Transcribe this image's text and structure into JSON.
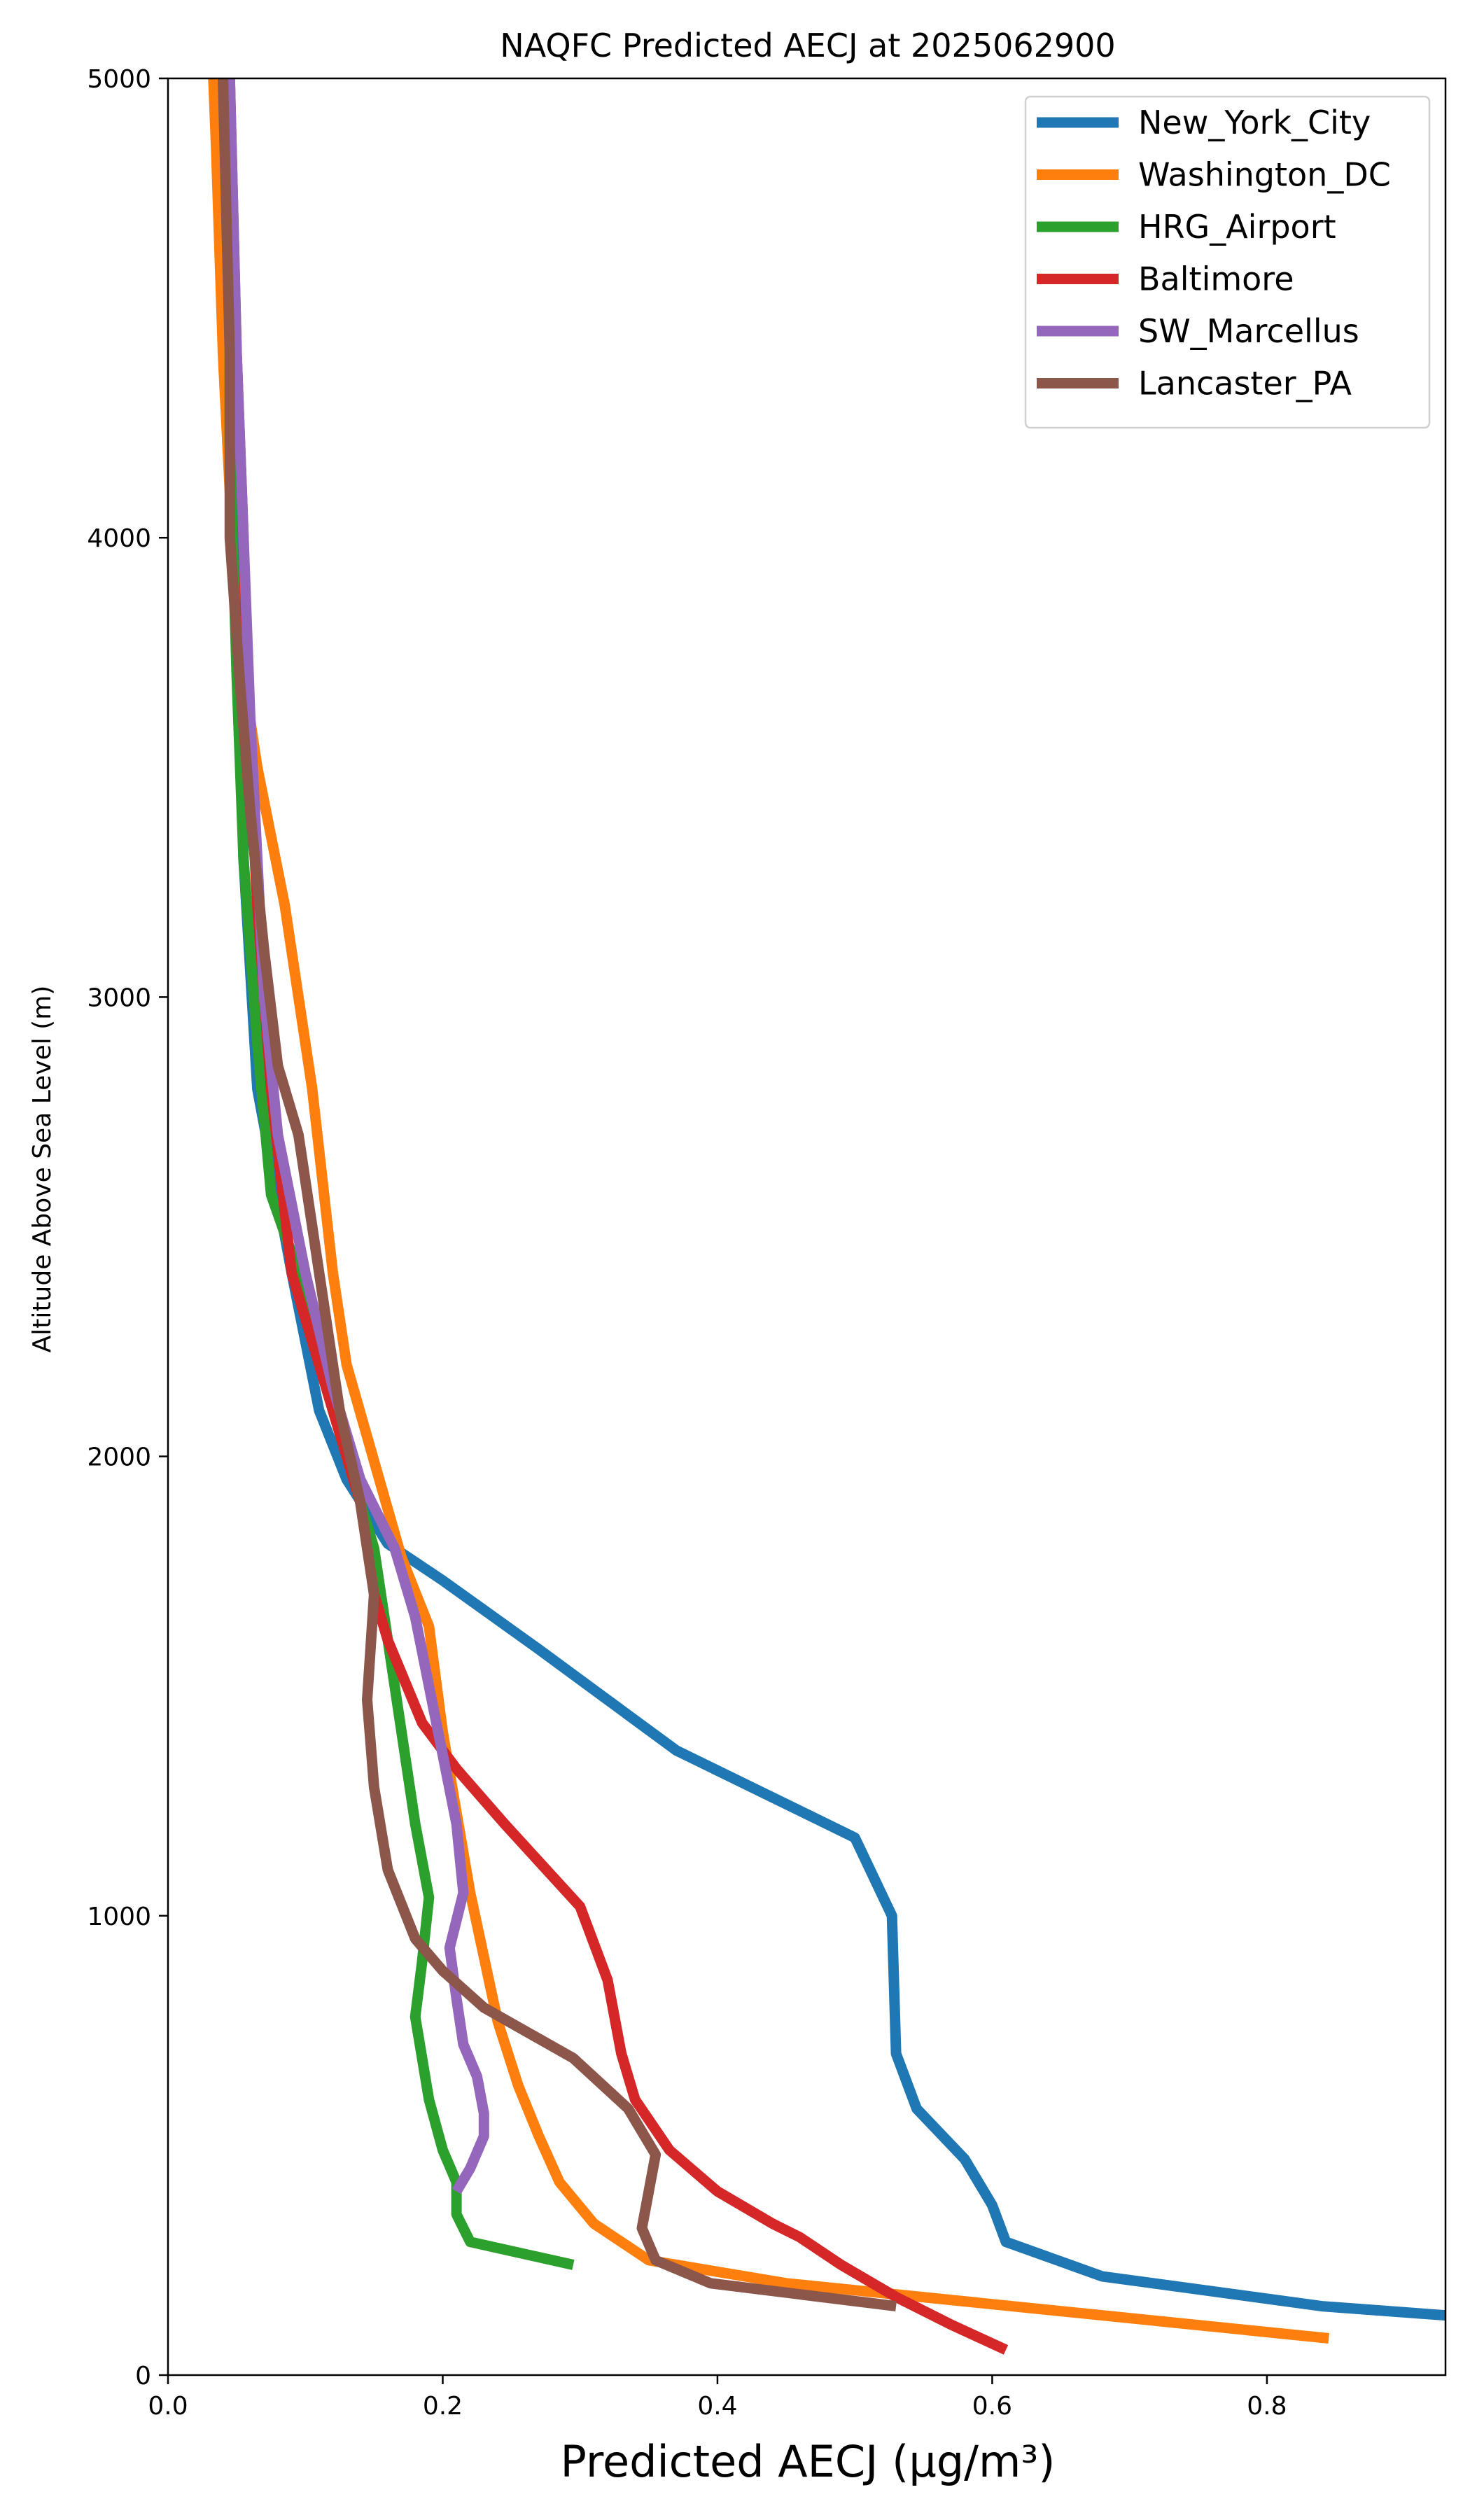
{
  "chart_data": {
    "type": "line",
    "title": "NAQFC Predicted AECJ at 2025062900",
    "xlabel": "Predicted AECJ (μg/m³)",
    "ylabel": "Altitude Above Sea Level (m)",
    "xlim": [
      0.0,
      0.93
    ],
    "ylim": [
      0,
      5000
    ],
    "xticks": [
      "0.0",
      "0.2",
      "0.4",
      "0.6",
      "0.8"
    ],
    "yticks": [
      "0",
      "1000",
      "2000",
      "3000",
      "4000",
      "5000"
    ],
    "grid": false,
    "legend_position": "top-right",
    "series": [
      {
        "name": "New_York_City",
        "color": "#1f77b4",
        "points": [
          [
            0.93,
            130
          ],
          [
            0.84,
            150
          ],
          [
            0.68,
            215
          ],
          [
            0.61,
            290
          ],
          [
            0.6,
            370
          ],
          [
            0.58,
            470
          ],
          [
            0.545,
            580
          ],
          [
            0.53,
            700
          ],
          [
            0.527,
            1000
          ],
          [
            0.5,
            1170
          ],
          [
            0.37,
            1360
          ],
          [
            0.27,
            1580
          ],
          [
            0.2,
            1730
          ],
          [
            0.16,
            1810
          ],
          [
            0.13,
            1950
          ],
          [
            0.11,
            2100
          ],
          [
            0.09,
            2400
          ],
          [
            0.065,
            2800
          ],
          [
            0.055,
            3300
          ],
          [
            0.05,
            4000
          ],
          [
            0.045,
            5000
          ]
        ]
      },
      {
        "name": "Washington_DC",
        "color": "#ff7f0e",
        "points": [
          [
            0.845,
            80
          ],
          [
            0.45,
            200
          ],
          [
            0.35,
            250
          ],
          [
            0.31,
            330
          ],
          [
            0.285,
            420
          ],
          [
            0.27,
            520
          ],
          [
            0.255,
            630
          ],
          [
            0.24,
            770
          ],
          [
            0.22,
            1050
          ],
          [
            0.2,
            1400
          ],
          [
            0.19,
            1630
          ],
          [
            0.17,
            1780
          ],
          [
            0.13,
            2200
          ],
          [
            0.12,
            2400
          ],
          [
            0.105,
            2800
          ],
          [
            0.085,
            3200
          ],
          [
            0.065,
            3500
          ],
          [
            0.05,
            3800
          ],
          [
            0.04,
            4400
          ],
          [
            0.035,
            4850
          ],
          [
            0.033,
            5000
          ]
        ]
      },
      {
        "name": "HRG_Airport",
        "color": "#2ca02c",
        "points": [
          [
            0.295,
            240
          ],
          [
            0.22,
            290
          ],
          [
            0.21,
            350
          ],
          [
            0.21,
            420
          ],
          [
            0.2,
            490
          ],
          [
            0.19,
            600
          ],
          [
            0.18,
            780
          ],
          [
            0.185,
            900
          ],
          [
            0.19,
            1040
          ],
          [
            0.18,
            1200
          ],
          [
            0.17,
            1400
          ],
          [
            0.16,
            1600
          ],
          [
            0.15,
            1800
          ],
          [
            0.12,
            2100
          ],
          [
            0.095,
            2400
          ],
          [
            0.075,
            2570
          ],
          [
            0.065,
            2900
          ],
          [
            0.055,
            3300
          ],
          [
            0.05,
            3700
          ],
          [
            0.045,
            4200
          ],
          [
            0.045,
            5000
          ]
        ]
      },
      {
        "name": "Baltimore",
        "color": "#d62728",
        "points": [
          [
            0.61,
            55
          ],
          [
            0.57,
            110
          ],
          [
            0.53,
            170
          ],
          [
            0.49,
            240
          ],
          [
            0.46,
            300
          ],
          [
            0.44,
            330
          ],
          [
            0.4,
            400
          ],
          [
            0.365,
            490
          ],
          [
            0.34,
            600
          ],
          [
            0.33,
            700
          ],
          [
            0.32,
            860
          ],
          [
            0.3,
            1020
          ],
          [
            0.245,
            1200
          ],
          [
            0.21,
            1320
          ],
          [
            0.185,
            1420
          ],
          [
            0.16,
            1600
          ],
          [
            0.15,
            1700
          ],
          [
            0.14,
            1900
          ],
          [
            0.115,
            2150
          ],
          [
            0.09,
            2400
          ],
          [
            0.075,
            2800
          ],
          [
            0.065,
            3200
          ],
          [
            0.058,
            3600
          ],
          [
            0.055,
            4000
          ],
          [
            0.05,
            4400
          ],
          [
            0.045,
            5000
          ]
        ]
      },
      {
        "name": "SW_Marcellus",
        "color": "#9467bd",
        "points": [
          [
            0.21,
            400
          ],
          [
            0.22,
            450
          ],
          [
            0.23,
            520
          ],
          [
            0.23,
            570
          ],
          [
            0.225,
            650
          ],
          [
            0.215,
            720
          ],
          [
            0.21,
            820
          ],
          [
            0.205,
            930
          ],
          [
            0.215,
            1050
          ],
          [
            0.21,
            1200
          ],
          [
            0.2,
            1350
          ],
          [
            0.19,
            1500
          ],
          [
            0.18,
            1650
          ],
          [
            0.165,
            1800
          ],
          [
            0.14,
            1950
          ],
          [
            0.12,
            2150
          ],
          [
            0.1,
            2400
          ],
          [
            0.08,
            2700
          ],
          [
            0.07,
            3000
          ],
          [
            0.065,
            3300
          ],
          [
            0.06,
            3600
          ],
          [
            0.055,
            4000
          ],
          [
            0.05,
            4400
          ],
          [
            0.045,
            5000
          ]
        ]
      },
      {
        "name": "Lancaster_PA",
        "color": "#8c564b",
        "points": [
          [
            0.53,
            150
          ],
          [
            0.395,
            200
          ],
          [
            0.355,
            250
          ],
          [
            0.345,
            320
          ],
          [
            0.35,
            400
          ],
          [
            0.355,
            480
          ],
          [
            0.335,
            580
          ],
          [
            0.295,
            690
          ],
          [
            0.23,
            800
          ],
          [
            0.2,
            880
          ],
          [
            0.18,
            950
          ],
          [
            0.16,
            1100
          ],
          [
            0.15,
            1280
          ],
          [
            0.145,
            1470
          ],
          [
            0.15,
            1700
          ],
          [
            0.14,
            1900
          ],
          [
            0.125,
            2100
          ],
          [
            0.11,
            2400
          ],
          [
            0.095,
            2700
          ],
          [
            0.08,
            2850
          ],
          [
            0.07,
            3100
          ],
          [
            0.06,
            3400
          ],
          [
            0.052,
            3700
          ],
          [
            0.045,
            4000
          ],
          [
            0.045,
            4400
          ],
          [
            0.04,
            5000
          ]
        ]
      }
    ]
  }
}
